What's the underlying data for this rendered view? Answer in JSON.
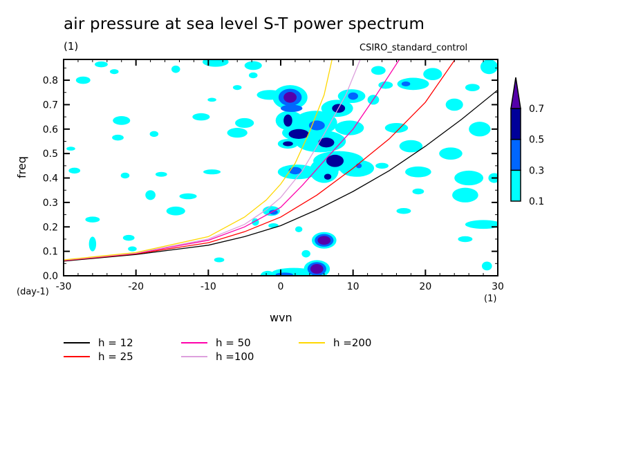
{
  "chart_data": {
    "type": "contour",
    "title": "air pressure at sea level S-T power spectrum",
    "subtitle_units": "(1)",
    "run_label": "CSIRO_standard_control",
    "xlabel": "wvn",
    "ylabel": "freq",
    "x_units": "(1)",
    "y_units": "(day-1)",
    "xlim": [
      -30,
      30
    ],
    "ylim": [
      0.0,
      0.885
    ],
    "x_ticks": [
      -30,
      -20,
      -10,
      0,
      10,
      20,
      30
    ],
    "x_tick_labels": [
      "-30",
      "-20",
      "-10",
      "0",
      "10",
      "20",
      "30"
    ],
    "y_ticks": [
      0.0,
      0.1,
      0.2,
      0.3,
      0.4,
      0.5,
      0.6,
      0.7,
      0.8
    ],
    "y_tick_labels": [
      "0.0",
      "0.1",
      "0.2",
      "0.3",
      "0.4",
      "0.5",
      "0.6",
      "0.7",
      "0.8"
    ],
    "colorbar": {
      "levels": [
        0.1,
        0.3,
        0.5,
        0.7
      ],
      "level_labels": [
        "0.1",
        "0.3",
        "0.5",
        "0.7"
      ],
      "colors": [
        "#00ffff",
        "#0066ff",
        "#000099",
        "#5500aa"
      ],
      "extend": "max"
    },
    "contour_blobs": [
      {
        "wvn": 1.3,
        "freq": 0.73,
        "r": [
          0.9,
          0.022
        ],
        "level": 3
      },
      {
        "wvn": 1.3,
        "freq": 0.73,
        "r": [
          1.6,
          0.035
        ],
        "level": 1
      },
      {
        "wvn": 1.3,
        "freq": 0.73,
        "r": [
          2.4,
          0.05
        ],
        "level": 0
      },
      {
        "wvn": 1.0,
        "freq": 0.635,
        "r": [
          0.6,
          0.025
        ],
        "level": 2
      },
      {
        "wvn": 1.2,
        "freq": 0.635,
        "r": [
          1.9,
          0.04
        ],
        "level": 0
      },
      {
        "wvn": 1.5,
        "freq": 0.685,
        "r": [
          1.5,
          0.015
        ],
        "level": 1
      },
      {
        "wvn": 2.5,
        "freq": 0.58,
        "r": [
          1.4,
          0.02
        ],
        "level": 2
      },
      {
        "wvn": 3.0,
        "freq": 0.585,
        "r": [
          2.8,
          0.035
        ],
        "level": 0
      },
      {
        "wvn": 6.3,
        "freq": 0.545,
        "r": [
          1.1,
          0.02
        ],
        "level": 2
      },
      {
        "wvn": 5.5,
        "freq": 0.55,
        "r": [
          3.5,
          0.045
        ],
        "level": 0
      },
      {
        "wvn": 8.0,
        "freq": 0.685,
        "r": [
          0.9,
          0.018
        ],
        "level": 2
      },
      {
        "wvn": 7.8,
        "freq": 0.685,
        "r": [
          2.2,
          0.035
        ],
        "level": 0
      },
      {
        "wvn": 10.0,
        "freq": 0.735,
        "r": [
          0.7,
          0.015
        ],
        "level": 1
      },
      {
        "wvn": 9.8,
        "freq": 0.735,
        "r": [
          1.9,
          0.028
        ],
        "level": 0
      },
      {
        "wvn": 5.0,
        "freq": 0.615,
        "r": [
          1.1,
          0.02
        ],
        "level": 1
      },
      {
        "wvn": 4.8,
        "freq": 0.625,
        "r": [
          3.0,
          0.05
        ],
        "level": 0
      },
      {
        "wvn": 1.0,
        "freq": 0.54,
        "r": [
          0.7,
          0.01
        ],
        "level": 2
      },
      {
        "wvn": 1.0,
        "freq": 0.54,
        "r": [
          1.4,
          0.02
        ],
        "level": 0
      },
      {
        "wvn": 7.5,
        "freq": 0.47,
        "r": [
          1.2,
          0.025
        ],
        "level": 2
      },
      {
        "wvn": 8.0,
        "freq": 0.47,
        "r": [
          3.5,
          0.04
        ],
        "level": 0
      },
      {
        "wvn": 2.0,
        "freq": 0.43,
        "r": [
          0.9,
          0.015
        ],
        "level": 1
      },
      {
        "wvn": 2.3,
        "freq": 0.425,
        "r": [
          2.7,
          0.03
        ],
        "level": 0
      },
      {
        "wvn": 6.5,
        "freq": 0.405,
        "r": [
          0.5,
          0.012
        ],
        "level": 2
      },
      {
        "wvn": 6.0,
        "freq": 0.43,
        "r": [
          2.0,
          0.05
        ],
        "level": 0
      },
      {
        "wvn": 10.8,
        "freq": 0.45,
        "r": [
          0.4,
          0.01
        ],
        "level": 1
      },
      {
        "wvn": 10.5,
        "freq": 0.44,
        "r": [
          2.4,
          0.035
        ],
        "level": 0
      },
      {
        "wvn": 9.5,
        "freq": 0.605,
        "r": [
          2.0,
          0.03
        ],
        "level": 0
      },
      {
        "wvn": 6.0,
        "freq": 0.145,
        "r": [
          0.9,
          0.018
        ],
        "level": 3
      },
      {
        "wvn": 6.0,
        "freq": 0.145,
        "r": [
          1.3,
          0.026
        ],
        "level": 1
      },
      {
        "wvn": 6.0,
        "freq": 0.145,
        "r": [
          1.7,
          0.034
        ],
        "level": 0
      },
      {
        "wvn": 5.0,
        "freq": 0.028,
        "r": [
          0.9,
          0.02
        ],
        "level": 3
      },
      {
        "wvn": 5.0,
        "freq": 0.028,
        "r": [
          1.3,
          0.028
        ],
        "level": 1
      },
      {
        "wvn": 5.0,
        "freq": 0.028,
        "r": [
          1.8,
          0.036
        ],
        "level": 0
      },
      {
        "wvn": 0.5,
        "freq": 0.005,
        "r": [
          1.2,
          0.008
        ],
        "level": 1
      },
      {
        "wvn": 1.8,
        "freq": 0.012,
        "r": [
          3.0,
          0.02
        ],
        "level": 0
      },
      {
        "wvn": -1.0,
        "freq": 0.26,
        "r": [
          0.6,
          0.01
        ],
        "level": 1
      },
      {
        "wvn": -1.3,
        "freq": 0.265,
        "r": [
          1.2,
          0.02
        ],
        "level": 0
      },
      {
        "wvn": -1.0,
        "freq": 0.205,
        "r": [
          0.7,
          0.01
        ],
        "level": 0
      },
      {
        "wvn": 17.3,
        "freq": 0.785,
        "r": [
          0.6,
          0.01
        ],
        "level": 1
      },
      {
        "wvn": 18.3,
        "freq": 0.785,
        "r": [
          2.2,
          0.025
        ],
        "level": 0
      },
      {
        "wvn": 14.5,
        "freq": 0.78,
        "r": [
          1.0,
          0.015
        ],
        "level": 0
      },
      {
        "wvn": 12.8,
        "freq": 0.72,
        "r": [
          0.8,
          0.02
        ],
        "level": 0
      },
      {
        "wvn": 21.0,
        "freq": 0.825,
        "r": [
          1.3,
          0.025
        ],
        "level": 0
      },
      {
        "wvn": 26.5,
        "freq": 0.77,
        "r": [
          1.0,
          0.015
        ],
        "level": 0
      },
      {
        "wvn": 28.8,
        "freq": 0.855,
        "r": [
          1.2,
          0.03
        ],
        "level": 0
      },
      {
        "wvn": 24.0,
        "freq": 0.7,
        "r": [
          1.2,
          0.025
        ],
        "level": 0
      },
      {
        "wvn": 18.0,
        "freq": 0.53,
        "r": [
          1.6,
          0.025
        ],
        "level": 0
      },
      {
        "wvn": 23.5,
        "freq": 0.5,
        "r": [
          1.6,
          0.025
        ],
        "level": 0
      },
      {
        "wvn": 26.0,
        "freq": 0.4,
        "r": [
          2.0,
          0.03
        ],
        "level": 0
      },
      {
        "wvn": 25.5,
        "freq": 0.33,
        "r": [
          1.8,
          0.03
        ],
        "level": 0
      },
      {
        "wvn": 19.0,
        "freq": 0.425,
        "r": [
          1.8,
          0.022
        ],
        "level": 0
      },
      {
        "wvn": 28.0,
        "freq": 0.21,
        "r": [
          2.5,
          0.018
        ],
        "level": 0
      },
      {
        "wvn": 17.0,
        "freq": 0.265,
        "r": [
          1.0,
          0.012
        ],
        "level": 0
      },
      {
        "wvn": 16.0,
        "freq": 0.605,
        "r": [
          1.6,
          0.02
        ],
        "level": 0
      },
      {
        "wvn": 27.5,
        "freq": 0.6,
        "r": [
          1.5,
          0.03
        ],
        "level": 0
      },
      {
        "wvn": 29.5,
        "freq": 0.4,
        "r": [
          0.8,
          0.02
        ],
        "level": 0
      },
      {
        "wvn": 28.5,
        "freq": 0.04,
        "r": [
          0.7,
          0.018
        ],
        "level": 0
      },
      {
        "wvn": 19.0,
        "freq": 0.345,
        "r": [
          0.8,
          0.012
        ],
        "level": 0
      },
      {
        "wvn": 14.0,
        "freq": 0.45,
        "r": [
          0.9,
          0.012
        ],
        "level": 0
      },
      {
        "wvn": -24.8,
        "freq": 0.865,
        "r": [
          0.9,
          0.012
        ],
        "level": 0
      },
      {
        "wvn": -27.3,
        "freq": 0.8,
        "r": [
          1.0,
          0.015
        ],
        "level": 0
      },
      {
        "wvn": -23.0,
        "freq": 0.835,
        "r": [
          0.6,
          0.01
        ],
        "level": 0
      },
      {
        "wvn": -9.0,
        "freq": 0.875,
        "r": [
          1.8,
          0.02
        ],
        "level": 0
      },
      {
        "wvn": -3.8,
        "freq": 0.86,
        "r": [
          1.2,
          0.018
        ],
        "level": 0
      },
      {
        "wvn": -3.8,
        "freq": 0.82,
        "r": [
          0.6,
          0.012
        ],
        "level": 0
      },
      {
        "wvn": -14.5,
        "freq": 0.845,
        "r": [
          0.6,
          0.015
        ],
        "level": 0
      },
      {
        "wvn": -9.5,
        "freq": 0.72,
        "r": [
          0.6,
          0.008
        ],
        "level": 0
      },
      {
        "wvn": -11.0,
        "freq": 0.65,
        "r": [
          1.2,
          0.015
        ],
        "level": 0
      },
      {
        "wvn": -22.0,
        "freq": 0.635,
        "r": [
          1.2,
          0.018
        ],
        "level": 0
      },
      {
        "wvn": -17.5,
        "freq": 0.58,
        "r": [
          0.6,
          0.012
        ],
        "level": 0
      },
      {
        "wvn": -29.0,
        "freq": 0.52,
        "r": [
          0.6,
          0.008
        ],
        "level": 0
      },
      {
        "wvn": -28.5,
        "freq": 0.43,
        "r": [
          0.8,
          0.012
        ],
        "level": 0
      },
      {
        "wvn": -22.5,
        "freq": 0.565,
        "r": [
          0.8,
          0.012
        ],
        "level": 0
      },
      {
        "wvn": -6.0,
        "freq": 0.585,
        "r": [
          1.4,
          0.02
        ],
        "level": 0
      },
      {
        "wvn": -5.0,
        "freq": 0.625,
        "r": [
          1.3,
          0.02
        ],
        "level": 0
      },
      {
        "wvn": -21.5,
        "freq": 0.41,
        "r": [
          0.6,
          0.012
        ],
        "level": 0
      },
      {
        "wvn": -18.0,
        "freq": 0.33,
        "r": [
          0.7,
          0.02
        ],
        "level": 0
      },
      {
        "wvn": -26.0,
        "freq": 0.23,
        "r": [
          1.0,
          0.012
        ],
        "level": 0
      },
      {
        "wvn": -21.0,
        "freq": 0.155,
        "r": [
          0.8,
          0.012
        ],
        "level": 0
      },
      {
        "wvn": -20.5,
        "freq": 0.11,
        "r": [
          0.6,
          0.01
        ],
        "level": 0
      },
      {
        "wvn": -12.8,
        "freq": 0.325,
        "r": [
          1.2,
          0.012
        ],
        "level": 0
      },
      {
        "wvn": -14.5,
        "freq": 0.265,
        "r": [
          1.3,
          0.018
        ],
        "level": 0
      },
      {
        "wvn": -3.5,
        "freq": 0.22,
        "r": [
          0.5,
          0.015
        ],
        "level": 0
      },
      {
        "wvn": -8.5,
        "freq": 0.065,
        "r": [
          0.7,
          0.01
        ],
        "level": 0
      },
      {
        "wvn": -16.5,
        "freq": 0.415,
        "r": [
          0.8,
          0.01
        ],
        "level": 0
      },
      {
        "wvn": -9.5,
        "freq": 0.425,
        "r": [
          1.2,
          0.01
        ],
        "level": 0
      },
      {
        "wvn": -26.0,
        "freq": 0.13,
        "r": [
          0.5,
          0.03
        ],
        "level": 0
      },
      {
        "wvn": -6.0,
        "freq": 0.77,
        "r": [
          0.6,
          0.01
        ],
        "level": 0
      },
      {
        "wvn": -1.5,
        "freq": 0.74,
        "r": [
          1.8,
          0.02
        ],
        "level": 0
      },
      {
        "wvn": -1.8,
        "freq": 0.0,
        "r": [
          1.0,
          0.02
        ],
        "level": 0
      },
      {
        "wvn": 3.5,
        "freq": 0.09,
        "r": [
          0.6,
          0.015
        ],
        "level": 0
      },
      {
        "wvn": 2.5,
        "freq": 0.19,
        "r": [
          0.5,
          0.012
        ],
        "level": 0
      },
      {
        "wvn": 13.5,
        "freq": 0.84,
        "r": [
          1.0,
          0.018
        ],
        "level": 0
      },
      {
        "wvn": 25.5,
        "freq": 0.15,
        "r": [
          1.0,
          0.012
        ],
        "level": 0
      }
    ],
    "series": [
      {
        "name": "h = 12",
        "color": "#000000",
        "x": [
          -30,
          -20,
          -10,
          -5,
          0,
          5,
          10,
          15,
          20,
          25,
          30
        ],
        "y": [
          0.06,
          0.087,
          0.125,
          0.16,
          0.205,
          0.27,
          0.345,
          0.43,
          0.53,
          0.64,
          0.76
        ]
      },
      {
        "name": "h = 25",
        "color": "#ff0000",
        "x": [
          -30,
          -20,
          -10,
          -5,
          0,
          5,
          10,
          15,
          20,
          24.1
        ],
        "y": [
          0.062,
          0.09,
          0.135,
          0.18,
          0.24,
          0.33,
          0.44,
          0.56,
          0.71,
          0.885
        ]
      },
      {
        "name": "h = 50",
        "color": "#ff00aa",
        "x": [
          -30,
          -20,
          -10,
          -5,
          0,
          3,
          6,
          10,
          13,
          16.4
        ],
        "y": [
          0.063,
          0.092,
          0.145,
          0.2,
          0.28,
          0.37,
          0.47,
          0.6,
          0.73,
          0.885
        ]
      },
      {
        "name": "h =100",
        "color": "#dda0dd",
        "x": [
          -30,
          -20,
          -10,
          -5,
          -2,
          0,
          3,
          6,
          9,
          11
        ],
        "y": [
          0.064,
          0.093,
          0.15,
          0.21,
          0.27,
          0.32,
          0.43,
          0.58,
          0.74,
          0.885
        ]
      },
      {
        "name": "h =200",
        "color": "#ffd700",
        "x": [
          -30,
          -20,
          -10,
          -5,
          -2,
          0,
          2,
          4,
          6,
          7.1
        ],
        "y": [
          0.065,
          0.095,
          0.16,
          0.24,
          0.31,
          0.375,
          0.46,
          0.59,
          0.74,
          0.885
        ]
      }
    ],
    "legend_position": "bottom"
  }
}
